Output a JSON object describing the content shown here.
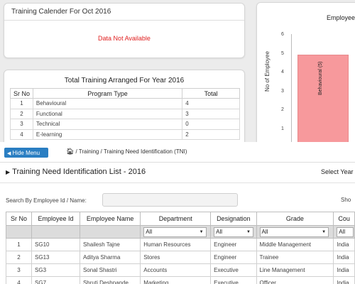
{
  "calendar": {
    "title": "Training Calender For Oct 2016",
    "message": "Data Not Available"
  },
  "total_training": {
    "title": "Total Training Arranged For Year 2016",
    "headers": [
      "Sr No",
      "Program Type",
      "Total"
    ],
    "rows": [
      {
        "sr": "1",
        "type": "Behavioural",
        "total": "4"
      },
      {
        "sr": "2",
        "type": "Functional",
        "total": "3"
      },
      {
        "sr": "3",
        "type": "Technical",
        "total": "0"
      },
      {
        "sr": "4",
        "type": "E-learning",
        "total": "2"
      }
    ]
  },
  "employee_chart": {
    "title": "Employee",
    "ylabel": "No of Employee",
    "bar_label": "Behavioural (5)",
    "chart_data": {
      "type": "bar",
      "categories": [
        "Behavioural"
      ],
      "values": [
        5
      ],
      "ylabel": "No of Employee",
      "ylim": [
        0,
        6
      ],
      "yticks": [
        "6",
        "5",
        "4",
        "3",
        "2",
        "1"
      ]
    }
  },
  "toolbar": {
    "hide_menu": "Hide Menu",
    "breadcrumb": "/ Training / Training Need Identification (TNI)"
  },
  "list": {
    "title": "Training Need Identification List - 2016",
    "select_year": "Select Year"
  },
  "search": {
    "label": "Search By Employee Id / Name:",
    "value": "",
    "show_label": "Sho"
  },
  "table": {
    "headers": [
      "Sr No",
      "Employee Id",
      "Employee Name",
      "Department",
      "Designation",
      "Grade",
      "Cou"
    ],
    "filter_value": "All",
    "rows": [
      [
        "1",
        "SG10",
        "Shailesh Tajne",
        "Human Resources",
        "Engineer",
        "Middle Management",
        "India"
      ],
      [
        "2",
        "SG13",
        "Aditya Sharma",
        "Stores",
        "Engineer",
        "Trainee",
        "India"
      ],
      [
        "3",
        "SG3",
        "Sonal Shastri",
        "Accounts",
        "Executive",
        "Line Management",
        "India"
      ],
      [
        "4",
        "SG7",
        "Shruti Deshpande",
        "Marketing",
        "Executive",
        "Officer",
        "India"
      ]
    ]
  },
  "colors": {
    "accent": "#2a7ec2",
    "bar": "#f7999c",
    "error": "#e02020"
  }
}
